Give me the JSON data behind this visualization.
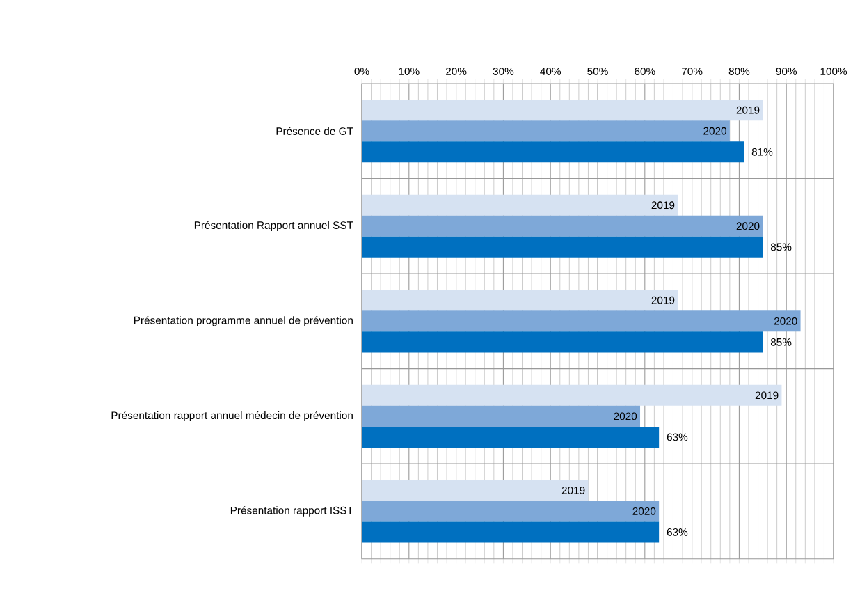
{
  "chart_data": {
    "type": "bar",
    "orientation": "horizontal",
    "grid": true,
    "categories": [
      "Présence de GT",
      "Présentation Rapport annuel SST",
      "Présentation programme annuel de prévention",
      "Présentation rapport annuel médecin de prévention",
      "Présentation rapport ISST"
    ],
    "series": [
      {
        "name": "2019",
        "color": "#d6e2f2",
        "values": [
          85,
          67,
          67,
          89,
          48
        ]
      },
      {
        "name": "2020",
        "color": "#7ea8d8",
        "values": [
          78,
          85,
          93,
          59,
          63
        ]
      },
      {
        "color": "#0070c0",
        "values": [
          81,
          85,
          85,
          63,
          63
        ],
        "value_labels": [
          "81%",
          "85%",
          "85%",
          "63%",
          "63%"
        ]
      }
    ],
    "xlim": [
      0,
      100
    ],
    "xticks": [
      {
        "value": 0,
        "label": "0%"
      },
      {
        "value": 10,
        "label": "10%"
      },
      {
        "value": 20,
        "label": "20%"
      },
      {
        "value": 30,
        "label": "30%"
      },
      {
        "value": 40,
        "label": "40%"
      },
      {
        "value": 50,
        "label": "50%"
      },
      {
        "value": 60,
        "label": "60%"
      },
      {
        "value": 70,
        "label": "70%"
      },
      {
        "value": 80,
        "label": "80%"
      },
      {
        "value": 90,
        "label": "90%"
      },
      {
        "value": 100,
        "label": "100%"
      }
    ]
  }
}
